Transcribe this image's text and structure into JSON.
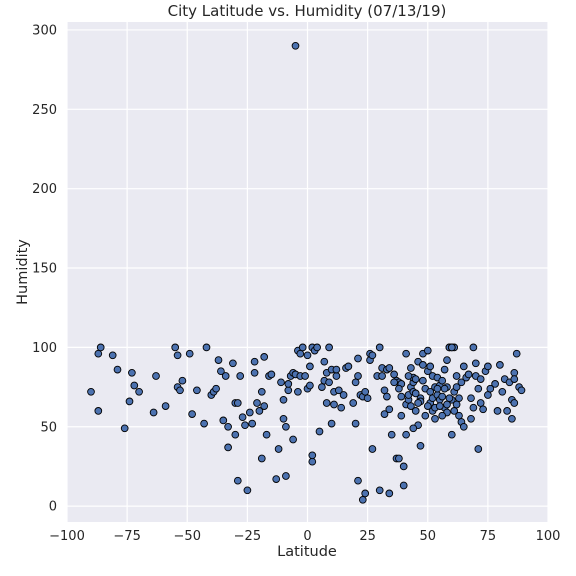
{
  "chart_data": {
    "type": "scatter",
    "title": "City Latitude vs. Humidity (07/13/19)",
    "xlabel": "Latitude",
    "ylabel": "Humidity",
    "xlim": [
      -100,
      100
    ],
    "ylim": [
      -10,
      305
    ],
    "xticks": [
      -100,
      -75,
      -50,
      -25,
      0,
      25,
      50,
      75,
      100
    ],
    "yticks": [
      0,
      50,
      100,
      150,
      200,
      250,
      300
    ],
    "xtick_labels": [
      "−100",
      "−75",
      "−50",
      "−25",
      "0",
      "25",
      "50",
      "75",
      "100"
    ],
    "ytick_labels": [
      "0",
      "50",
      "100",
      "150",
      "200",
      "250",
      "300"
    ],
    "grid": true,
    "plot_background": "#eaeaf2",
    "grid_color": "#ffffff",
    "marker_color": "#4c72b0",
    "marker_edge_color": "#000000",
    "points": [
      [
        -90,
        72
      ],
      [
        -87,
        60
      ],
      [
        -87,
        96
      ],
      [
        -86,
        100
      ],
      [
        -81,
        95
      ],
      [
        -79,
        86
      ],
      [
        -76,
        49
      ],
      [
        -74,
        66
      ],
      [
        -73,
        84
      ],
      [
        -72,
        76
      ],
      [
        -70,
        72
      ],
      [
        -64,
        59
      ],
      [
        -63,
        82
      ],
      [
        -59,
        63
      ],
      [
        -55,
        100
      ],
      [
        -54,
        75
      ],
      [
        -54,
        95
      ],
      [
        -53,
        73
      ],
      [
        -52,
        79
      ],
      [
        -49,
        96
      ],
      [
        -48,
        58
      ],
      [
        -46,
        73
      ],
      [
        -43,
        52
      ],
      [
        -42,
        100
      ],
      [
        -40,
        70
      ],
      [
        -39,
        72
      ],
      [
        -38,
        74
      ],
      [
        -37,
        92
      ],
      [
        -36,
        85
      ],
      [
        -35,
        54
      ],
      [
        -34,
        82
      ],
      [
        -33,
        50
      ],
      [
        -33,
        37
      ],
      [
        -31,
        90
      ],
      [
        -30,
        45
      ],
      [
        -30,
        65
      ],
      [
        -29,
        65
      ],
      [
        -29,
        16
      ],
      [
        -28,
        82
      ],
      [
        -27,
        56
      ],
      [
        -26,
        51
      ],
      [
        -25,
        10
      ],
      [
        -24,
        59
      ],
      [
        -23,
        52
      ],
      [
        -22,
        84
      ],
      [
        -22,
        91
      ],
      [
        -21,
        65
      ],
      [
        -20,
        60
      ],
      [
        -19,
        30
      ],
      [
        -19,
        72
      ],
      [
        -18,
        94
      ],
      [
        -18,
        63
      ],
      [
        -17,
        45
      ],
      [
        -16,
        82
      ],
      [
        -15,
        83
      ],
      [
        -13,
        17
      ],
      [
        -12,
        36
      ],
      [
        -11,
        78
      ],
      [
        -10,
        55
      ],
      [
        -10,
        67
      ],
      [
        -9,
        19
      ],
      [
        -9,
        50
      ],
      [
        -8,
        73
      ],
      [
        -8,
        77
      ],
      [
        -7,
        82
      ],
      [
        -6,
        84
      ],
      [
        -6,
        42
      ],
      [
        -5,
        290
      ],
      [
        -5,
        83
      ],
      [
        -4,
        72
      ],
      [
        -4,
        98
      ],
      [
        -3,
        82
      ],
      [
        -3,
        96
      ],
      [
        -2,
        100
      ],
      [
        -1,
        82
      ],
      [
        0,
        74
      ],
      [
        0,
        95
      ],
      [
        1,
        88
      ],
      [
        1,
        76
      ],
      [
        2,
        28
      ],
      [
        2,
        32
      ],
      [
        2,
        100
      ],
      [
        3,
        98
      ],
      [
        4,
        100
      ],
      [
        5,
        47
      ],
      [
        6,
        75
      ],
      [
        7,
        79
      ],
      [
        7,
        91
      ],
      [
        8,
        84
      ],
      [
        8,
        65
      ],
      [
        9,
        100
      ],
      [
        9,
        78
      ],
      [
        10,
        86
      ],
      [
        10,
        52
      ],
      [
        11,
        72
      ],
      [
        11,
        64
      ],
      [
        12,
        82
      ],
      [
        12,
        86
      ],
      [
        13,
        73
      ],
      [
        14,
        62
      ],
      [
        15,
        70
      ],
      [
        16,
        87
      ],
      [
        17,
        88
      ],
      [
        19,
        65
      ],
      [
        20,
        78
      ],
      [
        20,
        52
      ],
      [
        21,
        93
      ],
      [
        21,
        16
      ],
      [
        21,
        82
      ],
      [
        22,
        70
      ],
      [
        23,
        69
      ],
      [
        23,
        4
      ],
      [
        24,
        72
      ],
      [
        24,
        8
      ],
      [
        25,
        68
      ],
      [
        26,
        92
      ],
      [
        26,
        96
      ],
      [
        27,
        95
      ],
      [
        27,
        36
      ],
      [
        29,
        82
      ],
      [
        30,
        10
      ],
      [
        30,
        100
      ],
      [
        31,
        82
      ],
      [
        31,
        87
      ],
      [
        32,
        73
      ],
      [
        32,
        58
      ],
      [
        33,
        69
      ],
      [
        33,
        86
      ],
      [
        34,
        87
      ],
      [
        34,
        8
      ],
      [
        34,
        61
      ],
      [
        35,
        45
      ],
      [
        36,
        83
      ],
      [
        37,
        79
      ],
      [
        37,
        30
      ],
      [
        38,
        30
      ],
      [
        38,
        78
      ],
      [
        39,
        69
      ],
      [
        39,
        77
      ],
      [
        40,
        25
      ],
      [
        40,
        13
      ],
      [
        41,
        96
      ],
      [
        41,
        64
      ],
      [
        41,
        45
      ],
      [
        42,
        67
      ],
      [
        42,
        70
      ],
      [
        43,
        75
      ],
      [
        43,
        87
      ],
      [
        44,
        78
      ],
      [
        44,
        81
      ],
      [
        44,
        72
      ],
      [
        45,
        60
      ],
      [
        45,
        80
      ],
      [
        46,
        91
      ],
      [
        46,
        51
      ],
      [
        47,
        68
      ],
      [
        47,
        66
      ],
      [
        47,
        38
      ],
      [
        48,
        96
      ],
      [
        48,
        89
      ],
      [
        48,
        79
      ],
      [
        49,
        74
      ],
      [
        49,
        57
      ],
      [
        50,
        98
      ],
      [
        50,
        85
      ],
      [
        51,
        88
      ],
      [
        51,
        65
      ],
      [
        52,
        82
      ],
      [
        52,
        68
      ],
      [
        53,
        55
      ],
      [
        53,
        75
      ],
      [
        54,
        81
      ],
      [
        54,
        70
      ],
      [
        55,
        76
      ],
      [
        55,
        67
      ],
      [
        56,
        79
      ],
      [
        56,
        69
      ],
      [
        57,
        62
      ],
      [
        57,
        86
      ],
      [
        58,
        92
      ],
      [
        58,
        75
      ],
      [
        58,
        59
      ],
      [
        59,
        100
      ],
      [
        59,
        100
      ],
      [
        60,
        67
      ],
      [
        60,
        45
      ],
      [
        61,
        72
      ],
      [
        61,
        100
      ],
      [
        62,
        75
      ],
      [
        62,
        82
      ],
      [
        63,
        57
      ],
      [
        63,
        68
      ],
      [
        64,
        53
      ],
      [
        64,
        78
      ],
      [
        65,
        88
      ],
      [
        65,
        50
      ],
      [
        66,
        81
      ],
      [
        67,
        83
      ],
      [
        68,
        68
      ],
      [
        68,
        55
      ],
      [
        69,
        100
      ],
      [
        69,
        62
      ],
      [
        70,
        90
      ],
      [
        70,
        82
      ],
      [
        71,
        74
      ],
      [
        71,
        36
      ],
      [
        72,
        80
      ],
      [
        72,
        65
      ],
      [
        73,
        61
      ],
      [
        74,
        85
      ],
      [
        75,
        88
      ],
      [
        75,
        70
      ],
      [
        76,
        74
      ],
      [
        78,
        77
      ],
      [
        79,
        60
      ],
      [
        80,
        89
      ],
      [
        81,
        72
      ],
      [
        82,
        80
      ],
      [
        83,
        60
      ],
      [
        84,
        78
      ],
      [
        85,
        67
      ],
      [
        86,
        84
      ],
      [
        86,
        65
      ],
      [
        87,
        96
      ],
      [
        88,
        75
      ],
      [
        89,
        73
      ],
      [
        85,
        55
      ],
      [
        86,
        80
      ],
      [
        60,
        100
      ],
      [
        62,
        64
      ],
      [
        50,
        63
      ],
      [
        51,
        72
      ],
      [
        52,
        60
      ],
      [
        53,
        62
      ],
      [
        54,
        74
      ],
      [
        55,
        63
      ],
      [
        56,
        57
      ],
      [
        57,
        74
      ],
      [
        58,
        64
      ],
      [
        59,
        68
      ],
      [
        60,
        100
      ],
      [
        61,
        60
      ],
      [
        36,
        78
      ],
      [
        38,
        74
      ],
      [
        39,
        57
      ],
      [
        42,
        82
      ],
      [
        43,
        63
      ],
      [
        44,
        49
      ],
      [
        45,
        71
      ],
      [
        46,
        65
      ]
    ]
  }
}
